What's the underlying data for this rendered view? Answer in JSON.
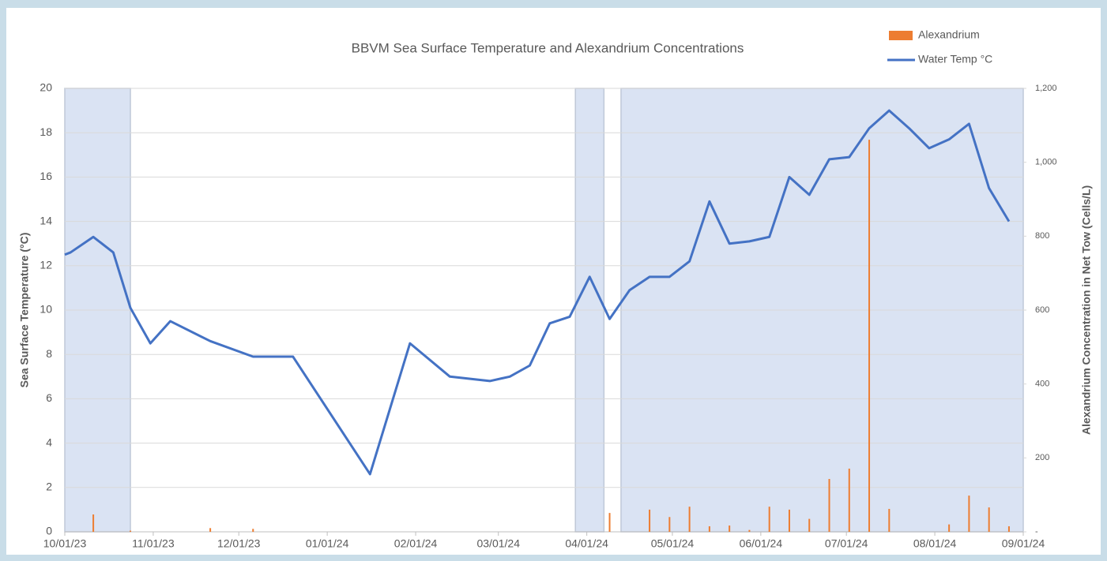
{
  "chart_data": {
    "type": "line",
    "title": "BBVM Sea Surface Temperature and Alexandrium Concentrations",
    "y_label": "Sea Surface Temperature (°C)",
    "y2_label": "Alexandrium Concentration in Net Tow (Cells/L)",
    "xlim": [
      "2023-10-01",
      "2024-09-01"
    ],
    "xticks": [
      {
        "value": "2023-10-01",
        "label": "10/01/23"
      },
      {
        "value": "2023-11-01",
        "label": "11/01/23"
      },
      {
        "value": "2023-12-01",
        "label": "12/01/23"
      },
      {
        "value": "2024-01-01",
        "label": "01/01/24"
      },
      {
        "value": "2024-02-01",
        "label": "02/01/24"
      },
      {
        "value": "2024-03-01",
        "label": "03/01/24"
      },
      {
        "value": "2024-04-01",
        "label": "04/01/24"
      },
      {
        "value": "2024-05-01",
        "label": "05/01/24"
      },
      {
        "value": "2024-06-01",
        "label": "06/01/24"
      },
      {
        "value": "2024-07-01",
        "label": "07/01/24"
      },
      {
        "value": "2024-08-01",
        "label": "08/01/24"
      },
      {
        "value": "2024-09-01",
        "label": "09/01/24"
      }
    ],
    "ylim": [
      0,
      20
    ],
    "yticks": [
      0,
      2,
      4,
      6,
      8,
      10,
      12,
      14,
      16,
      18,
      20
    ],
    "y2lim": [
      0,
      1200
    ],
    "y2ticks": [
      {
        "value": 0,
        "label": "-"
      },
      200,
      400,
      600,
      800,
      {
        "value": 1000,
        "label": "1,000"
      },
      {
        "value": 1200,
        "label": "1,200"
      }
    ],
    "grid": true,
    "legend": "top-right",
    "shaded_ranges": [
      [
        "2023-10-01",
        "2023-10-24"
      ],
      [
        "2024-03-28",
        "2024-04-07"
      ],
      [
        "2024-04-13",
        "2024-09-01"
      ]
    ],
    "shade_color": "#dae3f3",
    "series": [
      {
        "name": "Alexandrium",
        "type": "bar",
        "axis": "y2",
        "color": "#ed7d31",
        "x": [
          "2023-10-11",
          "2023-10-24",
          "2023-11-21",
          "2023-12-06",
          "2024-04-09",
          "2024-04-23",
          "2024-04-30",
          "2024-05-07",
          "2024-05-14",
          "2024-05-21",
          "2024-05-28",
          "2024-06-04",
          "2024-06-11",
          "2024-06-18",
          "2024-06-25",
          "2024-07-02",
          "2024-07-09",
          "2024-07-16",
          "2024-08-06",
          "2024-08-13",
          "2024-08-20",
          "2024-08-27"
        ],
        "values": [
          47,
          3,
          10,
          8,
          51,
          60,
          40,
          68,
          15,
          17,
          5,
          68,
          60,
          35,
          143,
          171,
          1061,
          62,
          20,
          98,
          66,
          15
        ]
      },
      {
        "name": "Water Temp °C",
        "type": "line",
        "axis": "y",
        "color": "#4472c4",
        "x": [
          "2023-10-01",
          "2023-10-03",
          "2023-10-11",
          "2023-10-18",
          "2023-10-24",
          "2023-10-31",
          "2023-11-07",
          "2023-11-21",
          "2023-12-06",
          "2023-12-20",
          "2024-01-16",
          "2024-01-30",
          "2024-02-13",
          "2024-02-27",
          "2024-03-05",
          "2024-03-12",
          "2024-03-19",
          "2024-03-26",
          "2024-04-02",
          "2024-04-09",
          "2024-04-16",
          "2024-04-23",
          "2024-04-30",
          "2024-05-07",
          "2024-05-14",
          "2024-05-21",
          "2024-05-28",
          "2024-06-04",
          "2024-06-11",
          "2024-06-18",
          "2024-06-25",
          "2024-07-02",
          "2024-07-09",
          "2024-07-16",
          "2024-07-23",
          "2024-07-30",
          "2024-08-06",
          "2024-08-13",
          "2024-08-20",
          "2024-08-27"
        ],
        "values": [
          12.5,
          12.6,
          13.3,
          12.6,
          10.1,
          8.5,
          9.5,
          8.6,
          7.9,
          7.9,
          2.6,
          8.5,
          7.0,
          6.8,
          7.0,
          7.5,
          9.4,
          9.7,
          11.5,
          9.6,
          10.9,
          11.5,
          11.5,
          12.2,
          14.9,
          13.0,
          13.1,
          13.3,
          16.0,
          15.2,
          16.8,
          16.9,
          18.2,
          19.0,
          18.2,
          17.3,
          17.7,
          18.4,
          15.5,
          14.0
        ]
      }
    ]
  }
}
